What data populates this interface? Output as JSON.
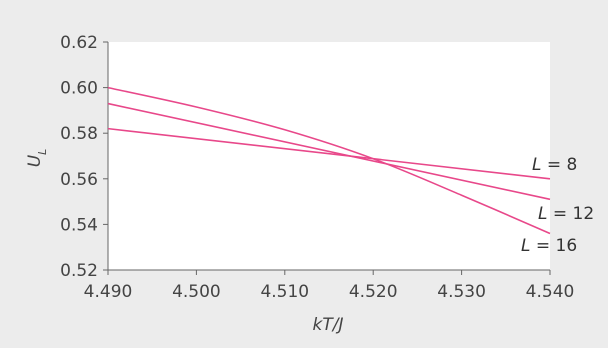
{
  "chart_data": {
    "type": "line",
    "title": "",
    "xlabel": "kT/J",
    "ylabel": "U_L",
    "xlim": [
      4.49,
      4.54
    ],
    "ylim": [
      0.52,
      0.62
    ],
    "xticks": [
      4.49,
      4.5,
      4.51,
      4.52,
      4.53,
      4.54
    ],
    "xtick_labels": [
      "4.490",
      "4.500",
      "4.510",
      "4.520",
      "4.530",
      "4.540"
    ],
    "yticks": [
      0.52,
      0.54,
      0.56,
      0.58,
      0.6,
      0.62
    ],
    "ytick_labels": [
      "0.52",
      "0.54",
      "0.56",
      "0.58",
      "0.60",
      "0.62"
    ],
    "grid": false,
    "background_color": "#ececec",
    "plot_background": "#ffffff",
    "line_color": "#e8488a",
    "series": [
      {
        "name": "L = 8",
        "label_parts": [
          "L",
          " = 8"
        ],
        "x": [
          4.49,
          4.54
        ],
        "y": [
          0.582,
          0.56
        ]
      },
      {
        "name": "L = 12",
        "label_parts": [
          "L",
          " = 12"
        ],
        "x": [
          4.49,
          4.54
        ],
        "y": [
          0.593,
          0.551
        ]
      },
      {
        "name": "L = 16",
        "label_parts": [
          "L",
          " = 16"
        ],
        "x": [
          4.49,
          4.5,
          4.51,
          4.52,
          4.53,
          4.54
        ],
        "y": [
          0.6,
          0.5915,
          0.5815,
          0.5688,
          0.5528,
          0.536
        ]
      }
    ]
  }
}
